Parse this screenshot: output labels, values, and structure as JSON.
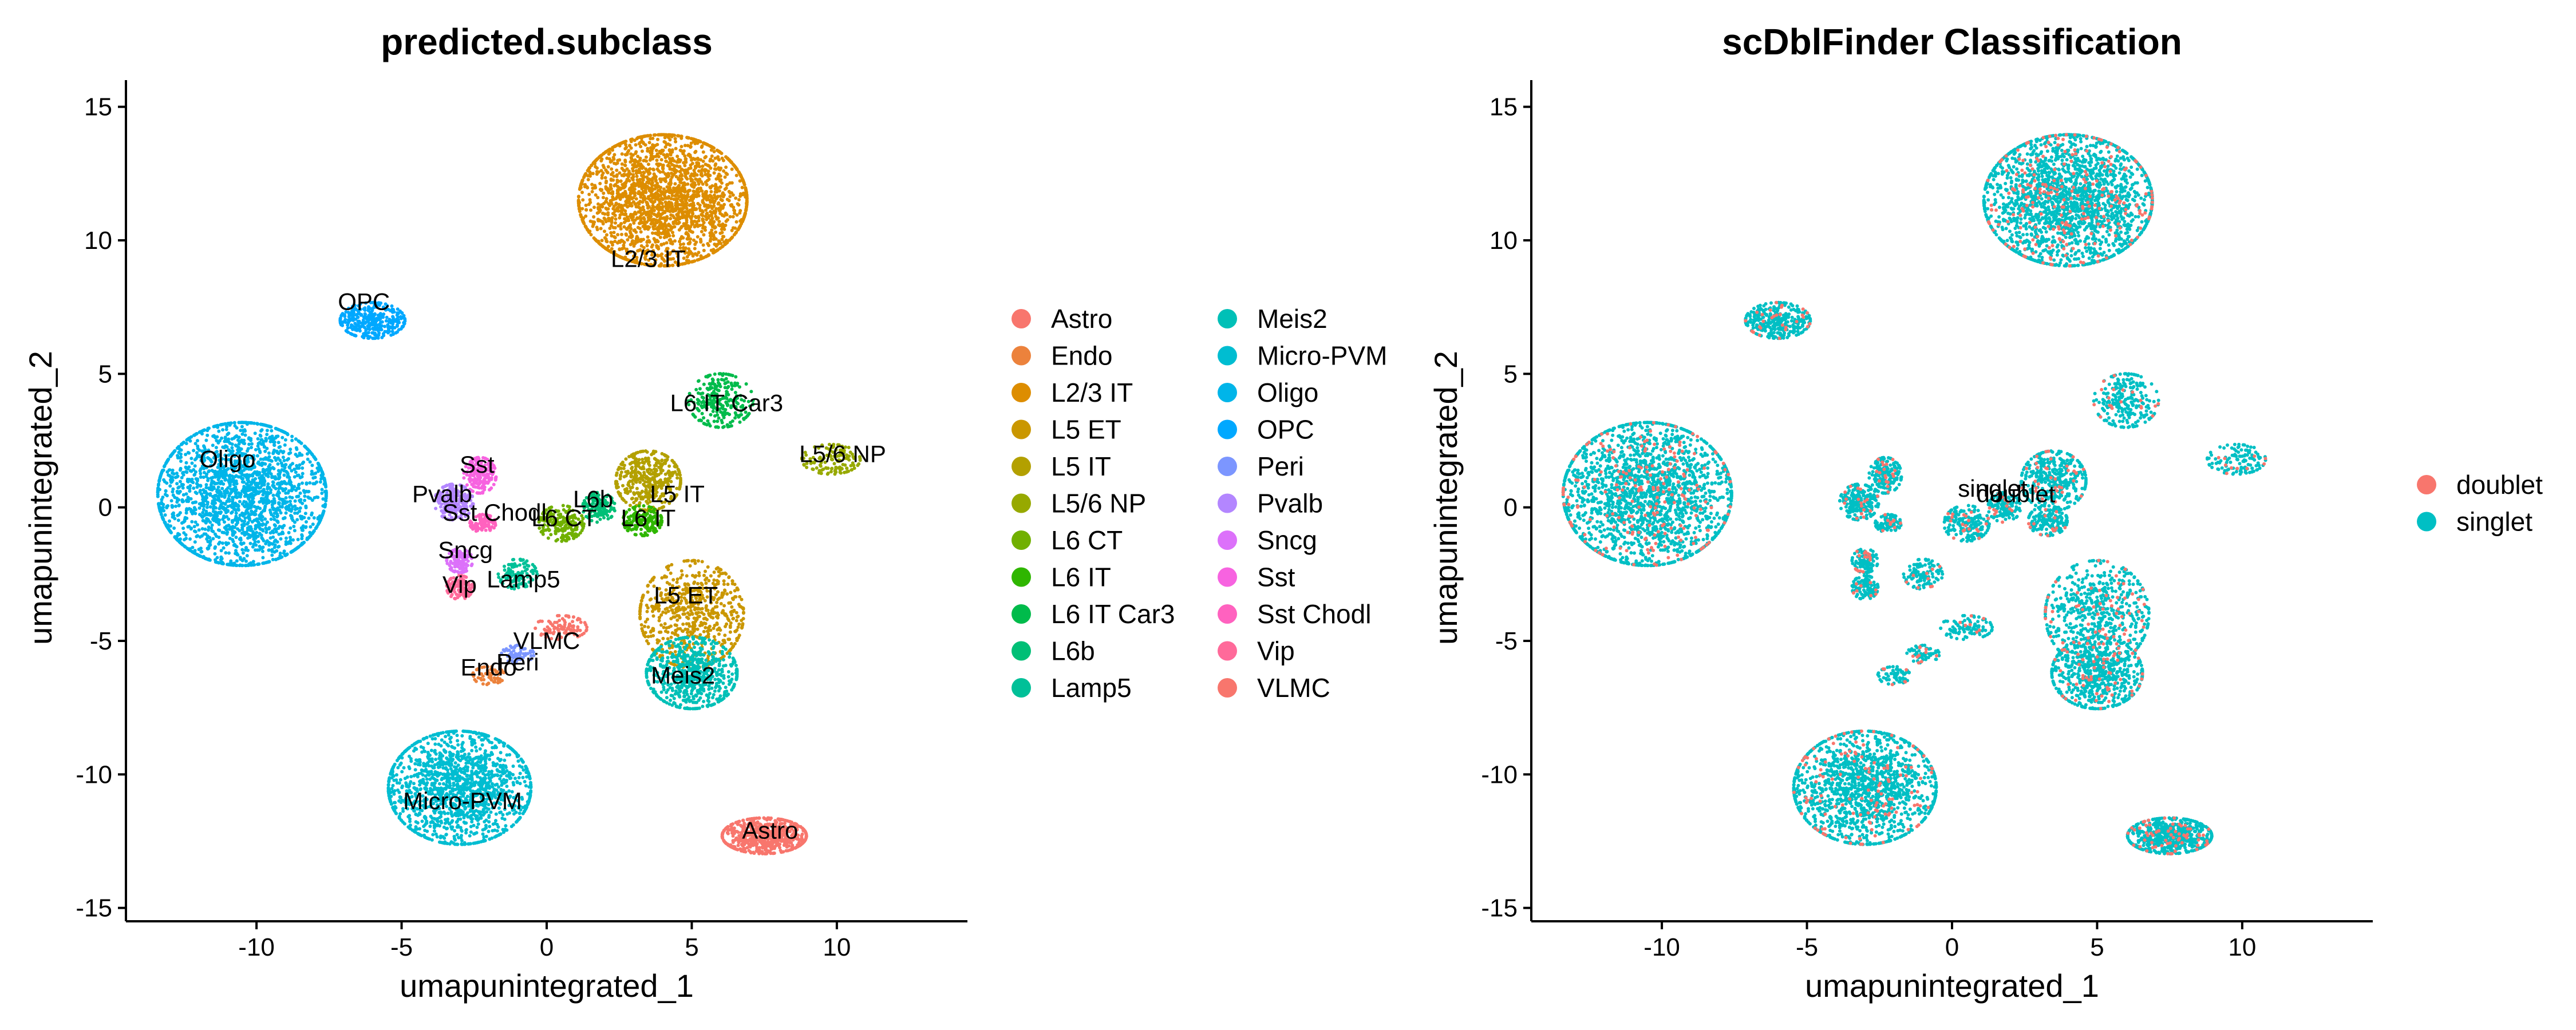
{
  "chart_data": [
    {
      "type": "scatter",
      "title": "predicted.subclass",
      "xlabel": "umapunintegrated_1",
      "ylabel": "umapunintegrated_2",
      "xlim": [
        -14.5,
        14.5
      ],
      "ylim": [
        -15.5,
        16.0
      ],
      "xticks": [
        -10,
        -5,
        0,
        5,
        10
      ],
      "yticks": [
        -15,
        -10,
        -5,
        0,
        5,
        10,
        15
      ],
      "grid": false,
      "legend_position": "right",
      "legend_columns": 2,
      "categories": [
        {
          "name": "Astro",
          "color": "#F8766D"
        },
        {
          "name": "Endo",
          "color": "#EC823C"
        },
        {
          "name": "L2/3 IT",
          "color": "#DD8D00"
        },
        {
          "name": "L5 ET",
          "color": "#CA9700"
        },
        {
          "name": "L5 IT",
          "color": "#B3A000"
        },
        {
          "name": "L5/6 NP",
          "color": "#97A900"
        },
        {
          "name": "L6 CT",
          "color": "#71B000"
        },
        {
          "name": "L6 IT",
          "color": "#2FB600"
        },
        {
          "name": "L6 IT Car3",
          "color": "#00BB4B"
        },
        {
          "name": "L6b",
          "color": "#00BF76"
        },
        {
          "name": "Lamp5",
          "color": "#00C098"
        },
        {
          "name": "Meis2",
          "color": "#00C0B7"
        },
        {
          "name": "Micro-PVM",
          "color": "#00BDD1"
        },
        {
          "name": "Oligo",
          "color": "#00B5E9"
        },
        {
          "name": "OPC",
          "color": "#00A8FF"
        },
        {
          "name": "Peri",
          "color": "#7C96FF"
        },
        {
          "name": "Pvalb",
          "color": "#B386FF"
        },
        {
          "name": "Sncg",
          "color": "#DC71FA"
        },
        {
          "name": "Sst",
          "color": "#F763E0"
        },
        {
          "name": "Sst Chodl",
          "color": "#FF62BF"
        },
        {
          "name": "Vip",
          "color": "#FF6A9A"
        },
        {
          "name": "VLMC",
          "color": "#F8766D"
        }
      ],
      "clusters": [
        {
          "name": "L2/3 IT",
          "center": [
            4.0,
            11.5
          ],
          "spread": [
            2.6,
            2.2
          ],
          "share": 0.14
        },
        {
          "name": "OPC",
          "center": [
            -6.0,
            7.0
          ],
          "spread": [
            1.0,
            0.6
          ],
          "share": 0.02
        },
        {
          "name": "Oligo",
          "center": [
            -10.5,
            0.5
          ],
          "spread": [
            2.6,
            2.4
          ],
          "share": 0.13
        },
        {
          "name": "Sst",
          "center": [
            -2.3,
            1.2
          ],
          "spread": [
            0.5,
            0.6
          ],
          "share": 0.012
        },
        {
          "name": "Pvalb",
          "center": [
            -3.2,
            0.2
          ],
          "spread": [
            0.6,
            0.6
          ],
          "share": 0.014
        },
        {
          "name": "Sst Chodl",
          "center": [
            -2.2,
            -0.6
          ],
          "spread": [
            0.4,
            0.3
          ],
          "share": 0.006
        },
        {
          "name": "Sncg",
          "center": [
            -3.0,
            -2.0
          ],
          "spread": [
            0.4,
            0.4
          ],
          "share": 0.007
        },
        {
          "name": "Vip",
          "center": [
            -3.0,
            -3.0
          ],
          "spread": [
            0.4,
            0.4
          ],
          "share": 0.007
        },
        {
          "name": "Lamp5",
          "center": [
            -1.0,
            -2.5
          ],
          "spread": [
            0.6,
            0.5
          ],
          "share": 0.007
        },
        {
          "name": "L6b",
          "center": [
            1.8,
            0.0
          ],
          "spread": [
            0.5,
            0.5
          ],
          "share": 0.008
        },
        {
          "name": "L6 CT",
          "center": [
            0.5,
            -0.6
          ],
          "spread": [
            0.7,
            0.6
          ],
          "share": 0.012
        },
        {
          "name": "L5 IT",
          "center": [
            3.5,
            1.0
          ],
          "spread": [
            1.0,
            1.0
          ],
          "share": 0.025
        },
        {
          "name": "L6 IT",
          "center": [
            3.3,
            -0.5
          ],
          "spread": [
            0.6,
            0.5
          ],
          "share": 0.01
        },
        {
          "name": "L6 IT Car3",
          "center": [
            6.0,
            4.0
          ],
          "spread": [
            1.0,
            0.9
          ],
          "share": 0.015
        },
        {
          "name": "L5/6 NP",
          "center": [
            9.8,
            1.8
          ],
          "spread": [
            0.9,
            0.5
          ],
          "share": 0.008
        },
        {
          "name": "L5 ET",
          "center": [
            5.0,
            -4.0
          ],
          "spread": [
            1.6,
            1.8
          ],
          "share": 0.04
        },
        {
          "name": "Meis2",
          "center": [
            5.0,
            -6.2
          ],
          "spread": [
            1.4,
            1.2
          ],
          "share": 0.04
        },
        {
          "name": "VLMC",
          "center": [
            0.5,
            -4.5
          ],
          "spread": [
            0.8,
            0.4
          ],
          "share": 0.006
        },
        {
          "name": "Peri",
          "center": [
            -1.0,
            -5.5
          ],
          "spread": [
            0.5,
            0.3
          ],
          "share": 0.004
        },
        {
          "name": "Endo",
          "center": [
            -2.0,
            -6.3
          ],
          "spread": [
            0.5,
            0.3
          ],
          "share": 0.004
        },
        {
          "name": "Micro-PVM",
          "center": [
            -3.0,
            -10.5
          ],
          "spread": [
            2.2,
            1.9
          ],
          "share": 0.09
        },
        {
          "name": "Astro",
          "center": [
            7.5,
            -12.3
          ],
          "spread": [
            1.3,
            0.6
          ],
          "share": 0.04
        }
      ],
      "point_labels": [
        {
          "text": "L2/3 IT",
          "x": 3.5,
          "y": 9.0
        },
        {
          "text": "OPC",
          "x": -6.3,
          "y": 7.4
        },
        {
          "text": "Oligo",
          "x": -11.0,
          "y": 1.5
        },
        {
          "text": "Sst",
          "x": -2.4,
          "y": 1.3
        },
        {
          "text": "Pvalb",
          "x": -3.6,
          "y": 0.2
        },
        {
          "text": "Sst Chodl",
          "x": -1.8,
          "y": -0.5
        },
        {
          "text": "Sncg",
          "x": -2.8,
          "y": -1.9
        },
        {
          "text": "Vip",
          "x": -3.0,
          "y": -3.2
        },
        {
          "text": "Lamp5",
          "x": -0.8,
          "y": -3.0
        },
        {
          "text": "L6b",
          "x": 1.6,
          "y": 0.0
        },
        {
          "text": "L6 CT",
          "x": 0.6,
          "y": -0.7
        },
        {
          "text": "L5 IT",
          "x": 4.5,
          "y": 0.2
        },
        {
          "text": "L6 IT",
          "x": 3.5,
          "y": -0.7
        },
        {
          "text": "L6 IT Car3",
          "x": 6.2,
          "y": 3.6
        },
        {
          "text": "L5/6 NP",
          "x": 10.2,
          "y": 1.7
        },
        {
          "text": "L5 ET",
          "x": 4.8,
          "y": -3.6
        },
        {
          "text": "VLMC",
          "x": 0.0,
          "y": -5.3
        },
        {
          "text": "Peri",
          "x": -1.0,
          "y": -6.1
        },
        {
          "text": "Endo",
          "x": -2.0,
          "y": -6.3
        },
        {
          "text": "Meis2",
          "x": 4.7,
          "y": -6.6
        },
        {
          "text": "Micro-PVM",
          "x": -2.9,
          "y": -11.3
        },
        {
          "text": "Astro",
          "x": 7.7,
          "y": -12.4
        }
      ]
    },
    {
      "type": "scatter",
      "title": "scDblFinder Classification",
      "xlabel": "umapunintegrated_1",
      "ylabel": "umapunintegrated_2",
      "xlim": [
        -14.5,
        14.5
      ],
      "ylim": [
        -15.5,
        16.0
      ],
      "xticks": [
        -10,
        -5,
        0,
        5,
        10
      ],
      "yticks": [
        -15,
        -10,
        -5,
        0,
        5,
        10,
        15
      ],
      "grid": false,
      "legend_position": "right",
      "legend_columns": 1,
      "categories": [
        {
          "name": "doublet",
          "color": "#F8766D"
        },
        {
          "name": "singlet",
          "color": "#00BFC4"
        }
      ],
      "point_labels": [
        {
          "text": "singlet",
          "x": 1.4,
          "y": 0.4
        },
        {
          "text": "doublet",
          "x": 2.2,
          "y": 0.2
        }
      ]
    }
  ]
}
